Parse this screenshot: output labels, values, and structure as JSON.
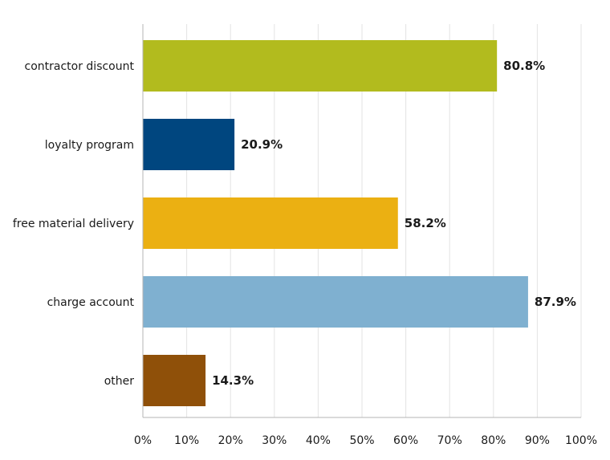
{
  "chart_data": {
    "type": "bar",
    "orientation": "horizontal",
    "categories": [
      "contractor discount",
      "loyalty program",
      "free material delivery",
      "charge account",
      "other"
    ],
    "values": [
      80.8,
      20.9,
      58.2,
      87.9,
      14.3
    ],
    "value_labels": [
      "80.8%",
      "20.9%",
      "58.2%",
      "87.9%",
      "14.3%"
    ],
    "colors": [
      "#b2bb1e",
      "#00467f",
      "#ebb012",
      "#7fb0d0",
      "#8f5009"
    ],
    "xlim": [
      0,
      100
    ],
    "x_ticks": [
      0,
      10,
      20,
      30,
      40,
      50,
      60,
      70,
      80,
      90,
      100
    ],
    "x_tick_labels": [
      "0%",
      "10%",
      "20%",
      "30%",
      "40%",
      "50%",
      "60%",
      "70%",
      "80%",
      "90%",
      "100%"
    ],
    "grid": true
  }
}
